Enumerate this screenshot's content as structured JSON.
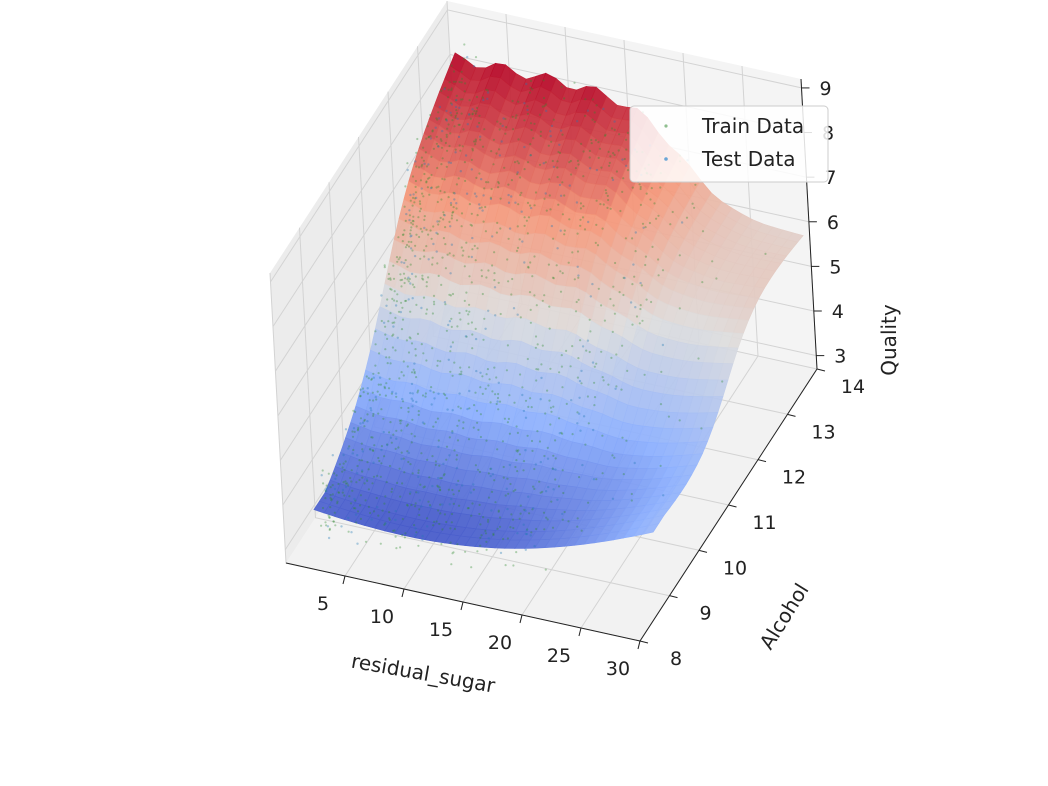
{
  "chart_data": {
    "type": "scatter",
    "subtype": "3d-scatter-with-fitted-surface",
    "title": "",
    "axes": {
      "x": {
        "label": "residual_sugar",
        "range": [
          0,
          30
        ],
        "ticks": [
          5,
          10,
          15,
          20,
          25,
          30
        ]
      },
      "y": {
        "label": "Alcohol",
        "range": [
          8,
          14
        ],
        "ticks": [
          8,
          9,
          10,
          11,
          12,
          13,
          14
        ]
      },
      "z": {
        "label": "Quality",
        "range": [
          2.7,
          9.2
        ],
        "ticks": [
          3,
          4,
          5,
          6,
          7,
          8,
          9
        ]
      }
    },
    "grid": true,
    "colormap": "coolwarm",
    "legend": {
      "placement": "top-right",
      "entries": [
        {
          "name": "Train Data",
          "color": "#7fbf7f"
        },
        {
          "name": "Test Data",
          "color": "#1f77b4"
        }
      ]
    },
    "surface": {
      "description_of_trend": "quality rises with alcohol; plateau near 8 at high alcohol and low sugar",
      "z_min": 3.0,
      "z_max": 8.3
    },
    "series": [
      {
        "name": "Train Data",
        "color": "#2a8a2a",
        "approx_point_count": 4000
      },
      {
        "name": "Test Data",
        "color": "#1f77b4",
        "approx_point_count": 1000
      }
    ],
    "colors": {
      "train_marker": "#2a8a2a",
      "test_marker": "#1f77b4",
      "pane": "#f2f2f2",
      "grid": "#d8d8d8"
    }
  }
}
